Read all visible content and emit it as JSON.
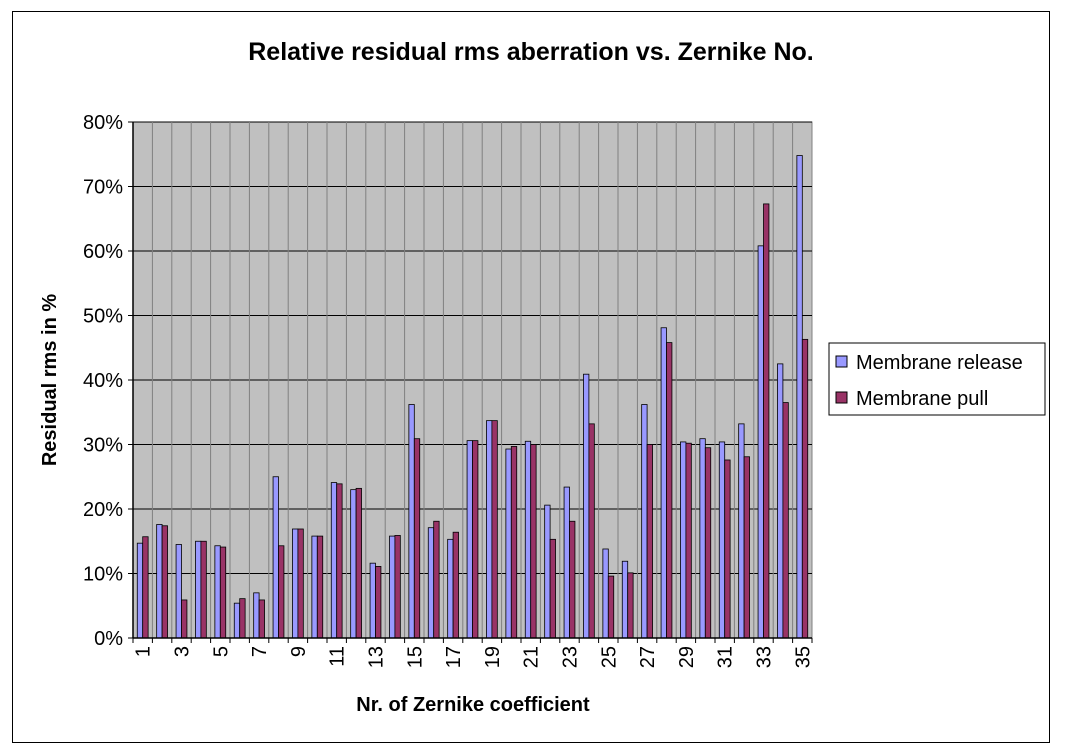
{
  "chart_data": {
    "type": "bar",
    "title": "Relative residual rms aberration vs. Zernike No.",
    "xlabel": "Nr. of Zernike coefficient",
    "ylabel": "Residual rms in %",
    "ylim": [
      0,
      80
    ],
    "y_ticks": [
      "0%",
      "10%",
      "20%",
      "30%",
      "40%",
      "50%",
      "60%",
      "70%",
      "80%"
    ],
    "x_tick_labels": [
      "1",
      "3",
      "5",
      "7",
      "9",
      "11",
      "13",
      "15",
      "17",
      "19",
      "21",
      "23",
      "25",
      "27",
      "29",
      "31",
      "33",
      "35"
    ],
    "categories": [
      1,
      2,
      3,
      4,
      5,
      6,
      7,
      8,
      9,
      10,
      11,
      12,
      13,
      14,
      15,
      16,
      17,
      18,
      19,
      20,
      21,
      22,
      23,
      24,
      25,
      26,
      27,
      28,
      29,
      30,
      31,
      32,
      33,
      34,
      35
    ],
    "grid": true,
    "legend_position": "right",
    "plot_background": "#c0c0c0",
    "series": [
      {
        "name": "Membrane release",
        "color": "#9999ff",
        "values": [
          14.7,
          17.6,
          14.5,
          15,
          14.3,
          5.4,
          7,
          25,
          16.9,
          15.8,
          24.1,
          23,
          11.6,
          15.8,
          36.2,
          17.1,
          15.3,
          30.6,
          33.7,
          29.3,
          30.5,
          20.6,
          23.4,
          40.9,
          13.8,
          11.9,
          36.2,
          48.1,
          30.4,
          30.9,
          30.4,
          33.2,
          60.8,
          42.5,
          74.8
        ]
      },
      {
        "name": "Membrane pull",
        "color": "#993366",
        "values": [
          15.7,
          17.4,
          5.9,
          15,
          14.1,
          6.1,
          5.9,
          14.3,
          16.9,
          15.8,
          23.9,
          23.2,
          11.1,
          15.9,
          30.9,
          18.1,
          16.4,
          30.6,
          33.7,
          29.7,
          30,
          15.3,
          18.1,
          33.2,
          9.6,
          10.1,
          30,
          45.8,
          30.2,
          29.5,
          27.6,
          28.1,
          67.3,
          36.5,
          46.3
        ]
      }
    ]
  }
}
